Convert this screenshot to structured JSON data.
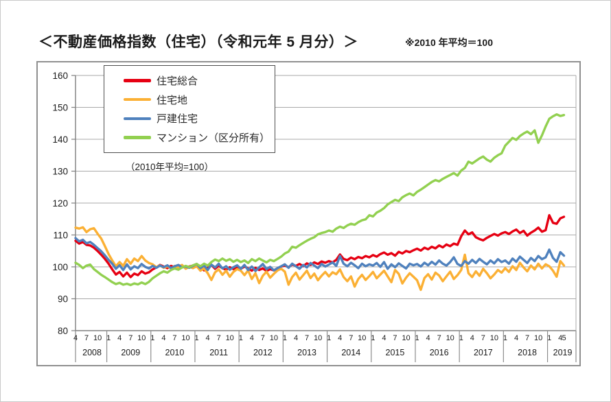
{
  "page": {
    "title": "＜不動産価格指数（住宅）（令和元年 5 月分）＞",
    "note": "※2010 年平均＝100"
  },
  "legend": {
    "note": "（2010年平均=100）"
  },
  "colors": {
    "grid": "#a9a9a9",
    "axis": "#7f7f7f",
    "separator": "#8c8c8c",
    "text": "#1a1a1a",
    "frame": "#8f8f8f"
  },
  "chart_data": {
    "type": "line",
    "title": "不動産価格指数（住宅）（令和元年5月分）",
    "subtitle": "2010年平均=100",
    "x_start_month": "2008-04",
    "x_end_month": "2019-05",
    "x_month_tick_labels": [
      "4",
      "7",
      "10",
      "1"
    ],
    "years": [
      2008,
      2009,
      2010,
      2011,
      2012,
      2013,
      2014,
      2015,
      2016,
      2017,
      2018,
      2019
    ],
    "last_year_extra_month_labels": [
      "4",
      "5"
    ],
    "ylim": [
      80,
      160
    ],
    "ytick_step": 10,
    "grid": true,
    "legend_position": "top-left",
    "series": [
      {
        "name": "住宅総合",
        "color": "#e60012",
        "values": [
          108.2,
          107.3,
          107.8,
          106.9,
          106.7,
          106.0,
          105.0,
          103.8,
          102.5,
          101.0,
          99.2,
          97.6,
          98.4,
          97.0,
          98.2,
          96.8,
          97.9,
          97.4,
          98.6,
          97.9,
          98.3,
          99.2,
          99.8,
          100.6,
          100.1,
          99.6,
          100.3,
          99.9,
          100.5,
          100.2,
          99.7,
          100.1,
          100.4,
          100.9,
          99.8,
          98.9,
          99.7,
          100.6,
          99.4,
          100.3,
          99.6,
          99.1,
          99.9,
          99.3,
          99.8,
          99.4,
          100.1,
          99.5,
          98.8,
          99.7,
          99.0,
          99.5,
          98.7,
          99.3,
          98.9,
          99.6,
          100.1,
          100.4,
          99.9,
          100.7,
          100.3,
          100.9,
          100.2,
          101.1,
          100.6,
          101.4,
          100.9,
          101.7,
          101.3,
          101.8,
          101.4,
          102.2,
          103.9,
          102.5,
          102.1,
          102.9,
          102.4,
          103.1,
          102.7,
          103.4,
          103.0,
          103.7,
          103.2,
          104.0,
          104.5,
          103.8,
          104.3,
          103.5,
          104.7,
          104.2,
          105.0,
          104.6,
          105.2,
          105.7,
          105.1,
          106.0,
          105.5,
          106.3,
          105.8,
          106.7,
          106.1,
          107.0,
          106.5,
          107.3,
          106.9,
          109.6,
          111.4,
          110.2,
          110.8,
          109.3,
          108.7,
          108.3,
          109.1,
          109.7,
          110.3,
          109.8,
          110.5,
          110.9,
          110.3,
          111.1,
          111.7,
          110.6,
          111.3,
          109.8,
          110.7,
          111.4,
          112.3,
          111.0,
          111.5,
          116.2,
          113.8,
          113.5,
          115.2,
          115.7
        ]
      },
      {
        "name": "住宅地",
        "color": "#fbb034",
        "values": [
          112.3,
          112.0,
          112.4,
          110.9,
          111.8,
          112.1,
          110.4,
          108.9,
          106.5,
          104.0,
          102.0,
          100.2,
          101.5,
          100.3,
          102.4,
          101.0,
          102.6,
          101.8,
          103.4,
          102.0,
          101.2,
          100.8,
          99.9,
          100.5,
          99.7,
          100.2,
          99.5,
          100.3,
          99.8,
          100.6,
          99.4,
          100.0,
          99.6,
          100.2,
          98.8,
          99.5,
          98.0,
          95.9,
          98.3,
          99.2,
          97.5,
          98.8,
          96.9,
          98.4,
          99.3,
          98.8,
          97.4,
          98.9,
          96.2,
          98.0,
          94.9,
          97.2,
          98.5,
          96.6,
          97.8,
          98.9,
          99.4,
          98.5,
          94.4,
          96.8,
          98.2,
          96.0,
          97.4,
          98.8,
          96.5,
          97.9,
          95.8,
          97.2,
          98.4,
          97.0,
          98.3,
          97.7,
          99.2,
          96.8,
          95.5,
          97.0,
          93.8,
          96.2,
          97.5,
          95.9,
          97.1,
          98.4,
          96.4,
          97.6,
          98.8,
          97.0,
          95.2,
          99.0,
          97.8,
          94.8,
          96.6,
          98.0,
          96.9,
          95.8,
          92.8,
          96.5,
          97.7,
          96.0,
          98.2,
          97.3,
          95.5,
          97.0,
          98.5,
          96.2,
          97.4,
          99.0,
          103.8,
          98.0,
          96.8,
          98.6,
          97.2,
          99.4,
          98.0,
          96.4,
          97.6,
          99.0,
          98.2,
          99.6,
          98.4,
          100.2,
          99.0,
          101.3,
          99.8,
          98.6,
          100.4,
          99.2,
          101.0,
          99.5,
          100.8,
          100.2,
          98.8,
          96.9,
          101.8,
          100.4
        ]
      },
      {
        "name": "戸建住宅",
        "color": "#4f81bd",
        "values": [
          109.0,
          108.0,
          108.5,
          107.4,
          107.8,
          106.9,
          105.9,
          104.9,
          103.6,
          102.2,
          101.0,
          99.4,
          100.5,
          99.0,
          100.8,
          99.2,
          100.2,
          99.6,
          100.9,
          100.0,
          99.5,
          100.3,
          99.7,
          100.4,
          99.9,
          100.5,
          99.6,
          100.2,
          100.6,
          99.8,
          100.1,
          99.7,
          100.3,
          100.9,
          99.6,
          100.4,
          99.0,
          100.7,
          99.8,
          101.0,
          99.5,
          100.2,
          99.1,
          99.9,
          100.5,
          99.4,
          100.6,
          99.0,
          100.1,
          98.7,
          99.8,
          100.9,
          99.3,
          100.0,
          98.9,
          99.6,
          100.2,
          100.8,
          99.7,
          101.0,
          100.2,
          99.4,
          100.6,
          99.8,
          101.2,
          100.4,
          99.6,
          100.9,
          100.1,
          100.7,
          101.4,
          100.3,
          103.4,
          101.0,
          100.2,
          101.3,
          100.5,
          99.6,
          101.0,
          100.2,
          100.8,
          100.4,
          101.2,
          100.0,
          101.5,
          99.4,
          100.8,
          99.9,
          101.1,
          100.3,
          99.5,
          101.0,
          100.5,
          100.9,
          100.1,
          101.3,
          100.5,
          101.6,
          100.7,
          102.0,
          101.0,
          100.4,
          101.5,
          103.0,
          100.9,
          100.3,
          101.8,
          101.0,
          102.2,
          101.2,
          102.5,
          101.6,
          100.8,
          102.0,
          101.1,
          102.4,
          101.5,
          102.0,
          101.0,
          102.6,
          101.6,
          103.2,
          102.2,
          101.2,
          102.8,
          101.8,
          103.4,
          102.4,
          103.0,
          105.4,
          102.8,
          101.6,
          104.6,
          103.5
        ]
      },
      {
        "name": "マンション（区分所有）",
        "color": "#92d050",
        "values": [
          101.3,
          100.6,
          99.6,
          100.4,
          100.7,
          99.3,
          98.4,
          97.5,
          96.8,
          96.0,
          95.2,
          94.6,
          95.0,
          94.4,
          94.7,
          94.3,
          94.8,
          94.5,
          95.1,
          94.6,
          95.3,
          96.4,
          97.2,
          98.0,
          98.6,
          98.2,
          99.0,
          99.5,
          99.1,
          99.8,
          100.3,
          99.9,
          100.5,
          100.9,
          100.2,
          101.0,
          100.4,
          101.5,
          102.3,
          101.8,
          102.6,
          101.9,
          102.4,
          101.6,
          102.2,
          101.5,
          102.0,
          101.2,
          102.4,
          101.8,
          102.6,
          102.0,
          101.4,
          102.2,
          101.8,
          102.5,
          103.2,
          104.2,
          104.8,
          106.3,
          106.0,
          106.8,
          107.5,
          108.2,
          108.8,
          109.3,
          110.2,
          110.6,
          110.9,
          111.4,
          111.0,
          112.0,
          112.6,
          112.2,
          113.0,
          113.5,
          113.2,
          114.0,
          114.6,
          114.9,
          116.2,
          115.8,
          117.0,
          117.6,
          118.4,
          119.6,
          120.3,
          121.0,
          120.6,
          121.8,
          122.5,
          123.0,
          122.4,
          123.5,
          124.2,
          125.0,
          125.8,
          126.6,
          127.2,
          126.8,
          127.6,
          128.2,
          128.8,
          129.4,
          128.6,
          130.2,
          131.0,
          133.0,
          132.4,
          133.2,
          134.0,
          134.6,
          133.6,
          133.0,
          134.2,
          135.0,
          135.6,
          138.0,
          139.2,
          140.4,
          139.8,
          141.0,
          141.8,
          142.4,
          141.6,
          142.8,
          138.9,
          141.2,
          144.0,
          146.4,
          147.2,
          147.8,
          147.3,
          147.6
        ]
      }
    ]
  }
}
